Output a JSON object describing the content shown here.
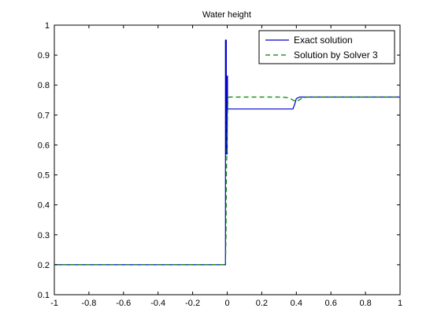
{
  "chart_data": {
    "type": "line",
    "title": "Water height",
    "xlabel": "",
    "ylabel": "",
    "xlim": [
      -1,
      1
    ],
    "ylim": [
      0.1,
      1
    ],
    "xticks": [
      -1,
      -0.8,
      -0.6,
      -0.4,
      -0.2,
      0,
      0.2,
      0.4,
      0.6,
      0.8,
      1
    ],
    "yticks": [
      0.1,
      0.2,
      0.3,
      0.4,
      0.5,
      0.6,
      0.7,
      0.8,
      0.9,
      1
    ],
    "xtick_labels": [
      "-1",
      "-0.8",
      "-0.6",
      "-0.4",
      "-0.2",
      "0",
      "0.2",
      "0.4",
      "0.6",
      "0.8",
      "1"
    ],
    "ytick_labels": [
      "0.1",
      "0.2",
      "0.3",
      "0.4",
      "0.5",
      "0.6",
      "0.7",
      "0.8",
      "0.9",
      "1"
    ],
    "grid": false,
    "legend_position": "top-right",
    "series": [
      {
        "name": "Exact solution",
        "color": "#0000c8",
        "style": "solid",
        "x": [
          -1,
          -0.01,
          -0.01,
          -0.005,
          -0.005,
          0.0,
          0.0,
          0.002,
          0.002,
          0.38,
          0.39,
          0.4,
          0.42,
          1
        ],
        "y": [
          0.2,
          0.2,
          0.95,
          0.95,
          0.57,
          0.57,
          0.83,
          0.83,
          0.72,
          0.72,
          0.735,
          0.755,
          0.76,
          0.76
        ]
      },
      {
        "name": "Solution by Solver 3",
        "color": "#008000",
        "style": "dashed",
        "x": [
          -1,
          -0.01,
          -0.007,
          -0.005,
          0.0,
          0.002,
          0.004,
          0.01,
          0.32,
          0.36,
          0.38,
          0.4,
          0.43,
          0.46,
          1
        ],
        "y": [
          0.2,
          0.2,
          0.3,
          0.5,
          0.62,
          0.7,
          0.755,
          0.76,
          0.76,
          0.757,
          0.75,
          0.745,
          0.755,
          0.76,
          0.76
        ]
      }
    ]
  }
}
